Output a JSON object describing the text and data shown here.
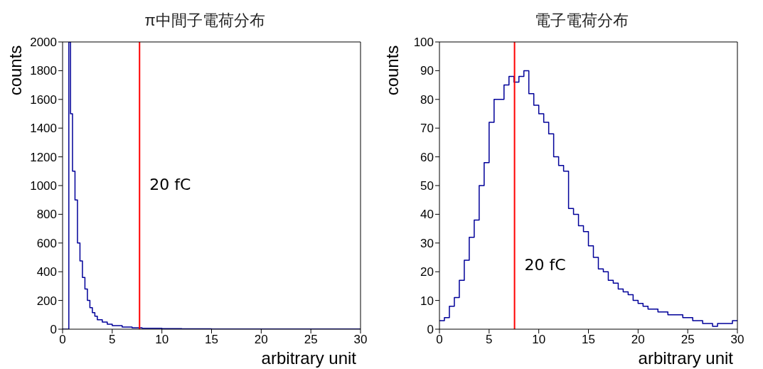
{
  "chart_data": [
    {
      "type": "histogram",
      "title": "π中間子電荷分布",
      "xlabel": "arbitrary unit",
      "ylabel": "counts",
      "color": "#000099",
      "bins": [
        0,
        0.63,
        0.8,
        1.0,
        1.25,
        1.5,
        1.75,
        2.0,
        2.25,
        2.5,
        2.75,
        3.0,
        3.25,
        3.5,
        4.0,
        4.5,
        5,
        6,
        7,
        8,
        10,
        12,
        15,
        20,
        30
      ],
      "values": [
        0,
        2000,
        1500,
        1100,
        900,
        600,
        475,
        360,
        280,
        200,
        150,
        115,
        90,
        65,
        50,
        35,
        25,
        15,
        10,
        6,
        4,
        2,
        1,
        1
      ],
      "xlim": [
        0,
        30
      ],
      "xticks": [
        0,
        5,
        10,
        15,
        20,
        25,
        30
      ],
      "ylim": [
        0,
        2000
      ],
      "yticks": [
        0,
        200,
        400,
        600,
        800,
        1000,
        1200,
        1400,
        1600,
        1800,
        2000
      ],
      "ref_lines": [
        {
          "axis": "x",
          "value": 7.75,
          "label": "20 fC",
          "color": "#ff0000"
        }
      ]
    },
    {
      "type": "histogram",
      "title": "電子電荷分布",
      "xlabel": "arbitrary unit",
      "ylabel": "counts",
      "color": "#000099",
      "bins": [
        0,
        0.5,
        1,
        1.5,
        2,
        2.5,
        3,
        3.5,
        4,
        4.5,
        5,
        5.5,
        6,
        6.5,
        7,
        7.5,
        8,
        8.5,
        9,
        9.5,
        10,
        10.5,
        11,
        11.5,
        12,
        12.5,
        13,
        13.5,
        14,
        14.5,
        15,
        15.5,
        16,
        16.5,
        17,
        17.5,
        18,
        18.5,
        19,
        19.5,
        20,
        20.5,
        21,
        21.5,
        22,
        22.5,
        23,
        23.5,
        24,
        24.5,
        25,
        25.5,
        26,
        26.5,
        27,
        27.5,
        28,
        28.5,
        29,
        29.5,
        30
      ],
      "values": [
        3,
        4,
        8,
        11,
        17,
        24,
        32,
        38,
        50,
        58,
        72,
        80,
        80,
        85,
        88,
        86,
        88,
        90,
        82,
        78,
        75,
        72,
        68,
        60,
        57,
        55,
        42,
        40,
        36,
        34,
        29,
        25,
        21,
        20,
        17,
        16,
        14,
        13,
        12,
        10,
        9,
        8,
        7,
        7,
        6,
        6,
        5,
        5,
        5,
        4,
        4,
        3,
        3,
        2,
        2,
        1,
        2,
        2,
        2,
        3
      ],
      "xlim": [
        0,
        30
      ],
      "xticks": [
        0,
        5,
        10,
        15,
        20,
        25,
        30
      ],
      "ylim": [
        0,
        100
      ],
      "yticks": [
        0,
        10,
        20,
        30,
        40,
        50,
        60,
        70,
        80,
        90,
        100
      ],
      "ref_lines": [
        {
          "axis": "x",
          "value": 7.56,
          "label": "20 fC",
          "color": "#ff0000"
        }
      ]
    }
  ]
}
